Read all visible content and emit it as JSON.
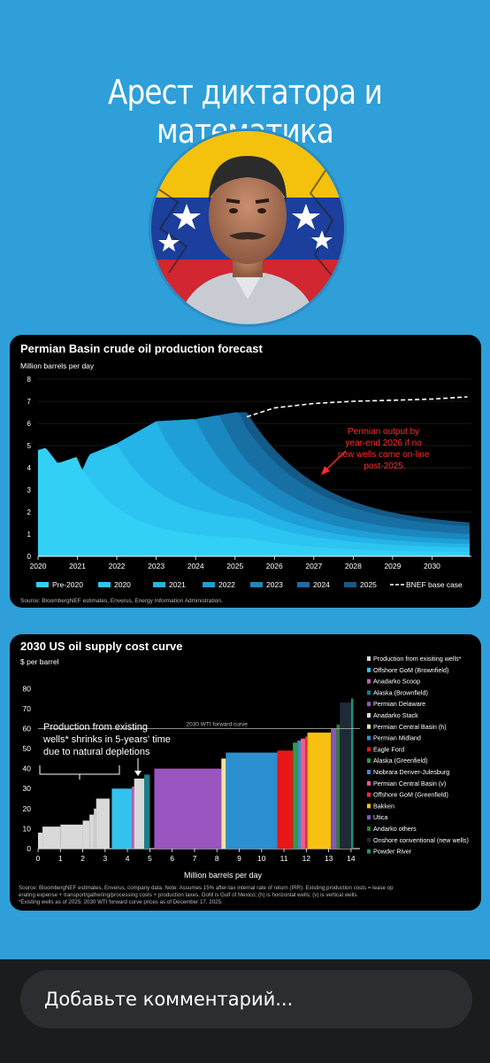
{
  "story": {
    "title": "Арест диктатора и математика",
    "comment_placeholder": "Добавьте комментарий..."
  },
  "colors": {
    "background": "#2e9fd8",
    "card": "#000000",
    "flag_yellow": "#f4c20d",
    "flag_blue": "#1c3e9c",
    "flag_red": "#d22630"
  },
  "chart_data": [
    {
      "type": "area",
      "title": "Permian Basin crude oil production forecast",
      "ylabel": "Million barrels per day",
      "ylim": [
        0,
        8
      ],
      "yticks": [
        "0",
        "1",
        "2",
        "3",
        "4",
        "5",
        "6",
        "7",
        "8"
      ],
      "xlim": [
        2020,
        2031
      ],
      "xticks": [
        "2020",
        "2021",
        "2022",
        "2023",
        "2024",
        "2025",
        "2026",
        "2027",
        "2028",
        "2029",
        "2030"
      ],
      "annotation": "Permian output by year-end 2026 if no new wells come on-line post-2025.",
      "legend": [
        "Pre-2020",
        "2020",
        "2021",
        "2022",
        "2023",
        "2024",
        "2025",
        "BNEF base case"
      ],
      "series_colors": [
        "#33d0f5",
        "#2cc4f0",
        "#25b4e8",
        "#1e9fd6",
        "#1a88bf",
        "#176fa3",
        "#145a88"
      ],
      "total_production": [
        [
          2020,
          4.8
        ],
        [
          2020.2,
          4.9
        ],
        [
          2020.5,
          4.2
        ],
        [
          2021,
          4.5
        ],
        [
          2021.1,
          3.8
        ],
        [
          2021.3,
          4.6
        ],
        [
          2022,
          5.1
        ],
        [
          2023,
          6.1
        ],
        [
          2024,
          6.2
        ],
        [
          2025,
          6.5
        ],
        [
          2025.3,
          6.5
        ]
      ],
      "base_case": [
        [
          2025.3,
          6.3
        ],
        [
          2026,
          6.7
        ],
        [
          2027,
          6.9
        ],
        [
          2028,
          7.0
        ],
        [
          2029,
          7.05
        ],
        [
          2030,
          7.1
        ],
        [
          2030.9,
          7.2
        ]
      ],
      "decline_end_2026": 3.9,
      "decline_end_2030": 1.3,
      "source": "Source: BloombergNEF estimates, Enverus, Energy Information Administration."
    },
    {
      "type": "bar",
      "title": "2030 US oil supply cost curve",
      "ylabel": "$ per barrel",
      "xlabel": "Million barrels per day",
      "ylim": [
        0,
        85
      ],
      "yticks": [
        "0",
        "10",
        "20",
        "30",
        "40",
        "50",
        "60",
        "70",
        "80"
      ],
      "xlim": [
        0,
        14.4
      ],
      "xticks": [
        "0",
        "1",
        "2",
        "3",
        "4",
        "5",
        "6",
        "7",
        "8",
        "9",
        "10",
        "11",
        "12",
        "13",
        "14"
      ],
      "reference_line": {
        "label": "2030 WTI forward curve",
        "value": 60
      },
      "annotation": "Production from existing wells* shrinks in 5-years' time due to natural depletions",
      "segments": [
        {
          "name": "Production from exisiting wells*",
          "color": "#d9d9d9",
          "x0": 0.0,
          "x1": 0.2,
          "y": 8
        },
        {
          "name": "Production from exisiting wells*",
          "color": "#d9d9d9",
          "x0": 0.2,
          "x1": 1.0,
          "y": 11
        },
        {
          "name": "Production from exisiting wells*",
          "color": "#d9d9d9",
          "x0": 1.0,
          "x1": 2.0,
          "y": 12
        },
        {
          "name": "Production from exisiting wells*",
          "color": "#d9d9d9",
          "x0": 2.0,
          "x1": 2.3,
          "y": 14
        },
        {
          "name": "Production from exisiting wells*",
          "color": "#d9d9d9",
          "x0": 2.3,
          "x1": 2.5,
          "y": 17
        },
        {
          "name": "Production from exisiting wells*",
          "color": "#d9d9d9",
          "x0": 2.5,
          "x1": 2.6,
          "y": 20
        },
        {
          "name": "Production from exisiting wells*",
          "color": "#d9d9d9",
          "x0": 2.6,
          "x1": 3.2,
          "y": 25
        },
        {
          "name": "Offshore GoM (Brownfield)",
          "color": "#33c1ee",
          "x0": 3.3,
          "x1": 4.2,
          "y": 30
        },
        {
          "name": "Anadarko Scoop",
          "color": "#c25fb6",
          "x0": 4.2,
          "x1": 4.3,
          "y": 31
        },
        {
          "name": "Production from exisiting wells*",
          "color": "#d9d9d9",
          "x0": 4.3,
          "x1": 4.75,
          "y": 35
        },
        {
          "name": "Alaska (Brownfield)",
          "color": "#1a7f8a",
          "x0": 4.75,
          "x1": 5.0,
          "y": 37
        },
        {
          "name": "Permian Delaware",
          "color": "#9a55c0",
          "x0": 5.2,
          "x1": 8.2,
          "y": 40
        },
        {
          "name": "Permian Central Basin (h)",
          "color": "#f2e3a0",
          "x0": 8.2,
          "x1": 8.4,
          "y": 45
        },
        {
          "name": "Permian Midland",
          "color": "#2b8fd0",
          "x0": 8.4,
          "x1": 10.7,
          "y": 48
        },
        {
          "name": "Eagle Ford",
          "color": "#e81818",
          "x0": 10.7,
          "x1": 11.4,
          "y": 49
        },
        {
          "name": "Alaska (Greenfield)",
          "color": "#2f9a4e",
          "x0": 11.4,
          "x1": 11.6,
          "y": 53
        },
        {
          "name": "Niobrara Denver-Julesburg",
          "color": "#3a8fd0",
          "x0": 11.6,
          "x1": 11.75,
          "y": 54
        },
        {
          "name": "Permian Central Basin (v)",
          "color": "#f15a8a",
          "x0": 11.75,
          "x1": 11.95,
          "y": 55
        },
        {
          "name": "Offshore GoM (Greenfield)",
          "color": "#e8303a",
          "x0": 11.95,
          "x1": 12.05,
          "y": 56
        },
        {
          "name": "Bakken",
          "color": "#f8c112",
          "x0": 12.05,
          "x1": 13.1,
          "y": 58
        },
        {
          "name": "Utica",
          "color": "#8258b8",
          "x0": 13.1,
          "x1": 13.35,
          "y": 60
        },
        {
          "name": "Andarko others",
          "color": "#2e7d32",
          "x0": 13.35,
          "x1": 13.5,
          "y": 62
        },
        {
          "name": "Onshore conventional (new wells)",
          "color": "#1e2a38",
          "x0": 13.5,
          "x1": 14.0,
          "y": 73
        },
        {
          "name": "Powder River",
          "color": "#1f8f7a",
          "x0": 14.0,
          "x1": 14.1,
          "y": 75
        }
      ],
      "legend": [
        {
          "label": "Production from exisiting wells*",
          "color": "#d9d9d9"
        },
        {
          "label": "Offshore GoM (Brownfield)",
          "color": "#33c1ee"
        },
        {
          "label": "Anadarko Scoop",
          "color": "#c25fb6"
        },
        {
          "label": "Alaska (Brownfield)",
          "color": "#1a7f8a"
        },
        {
          "label": "Permian Delaware",
          "color": "#9a55c0"
        },
        {
          "label": "Anadarko Stack",
          "color": "#e0e0e0"
        },
        {
          "label": "Permian Central Basin (h)",
          "color": "#f2e3a0"
        },
        {
          "label": "Permian Midland",
          "color": "#2b8fd0"
        },
        {
          "label": "Eagle Ford",
          "color": "#e81818"
        },
        {
          "label": "Alaska (Greenfield)",
          "color": "#2f9a4e"
        },
        {
          "label": "Niobrara Denver-Julesburg",
          "color": "#3a8fd0"
        },
        {
          "label": "Permian Central Basin (v)",
          "color": "#f15a8a"
        },
        {
          "label": "Offshore GoM (Greenfield)",
          "color": "#e8303a"
        },
        {
          "label": "Bakken",
          "color": "#f8c112"
        },
        {
          "label": "Utica",
          "color": "#8258b8"
        },
        {
          "label": "Andarko others",
          "color": "#2e7d32"
        },
        {
          "label": "Onshore conventional (new wells)",
          "color": "#1e2a38"
        },
        {
          "label": "Powder River",
          "color": "#1f8f7a"
        }
      ],
      "source": "Source: BloombergNEF estimates, Enverus, company data. Note: Assumes 15% after-tax internal rate of return (IRR). Existing production costs = lease operating expense + transport/gathering/processing costs + production taxes. GoM is Gulf of Mexico; (h) is horizontal wells; (v) is vertical wells.",
      "footnote": "*Existing wells as of 2025. 2030 WTI forward curve prices as of December 17, 2025."
    }
  ]
}
